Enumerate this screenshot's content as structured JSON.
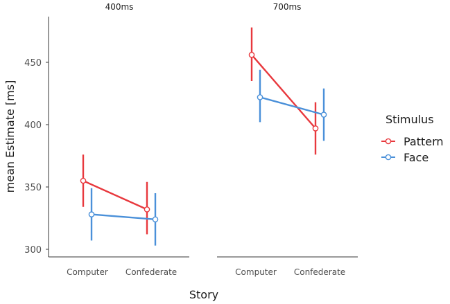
{
  "chart_data": {
    "type": "line",
    "title": "",
    "xlabel": "Story",
    "ylabel": "mean Estimate [ms]",
    "ylim": [
      292,
      475
    ],
    "yticks": [
      300,
      350,
      400,
      450
    ],
    "grid": false,
    "legend": {
      "title": "Stimulus",
      "placement": "right"
    },
    "categories": [
      "Computer",
      "Confederate"
    ],
    "series_meta": [
      {
        "name": "Pattern",
        "color": "#e8383d"
      },
      {
        "name": "Face",
        "color": "#4a90d9"
      }
    ],
    "panels": [
      {
        "label": "400ms",
        "series": [
          {
            "name": "Pattern",
            "values": [
              355,
              332
            ],
            "lower": [
              334,
              312
            ],
            "upper": [
              376,
              354
            ]
          },
          {
            "name": "Face",
            "values": [
              328,
              324
            ],
            "lower": [
              307,
              303
            ],
            "upper": [
              349,
              345
            ]
          }
        ]
      },
      {
        "label": "700ms",
        "series": [
          {
            "name": "Pattern",
            "values": [
              456,
              397
            ],
            "lower": [
              435,
              376
            ],
            "upper": [
              478,
              418
            ]
          },
          {
            "name": "Face",
            "values": [
              422,
              408
            ],
            "lower": [
              402,
              387
            ],
            "upper": [
              444,
              429
            ]
          }
        ]
      }
    ]
  }
}
